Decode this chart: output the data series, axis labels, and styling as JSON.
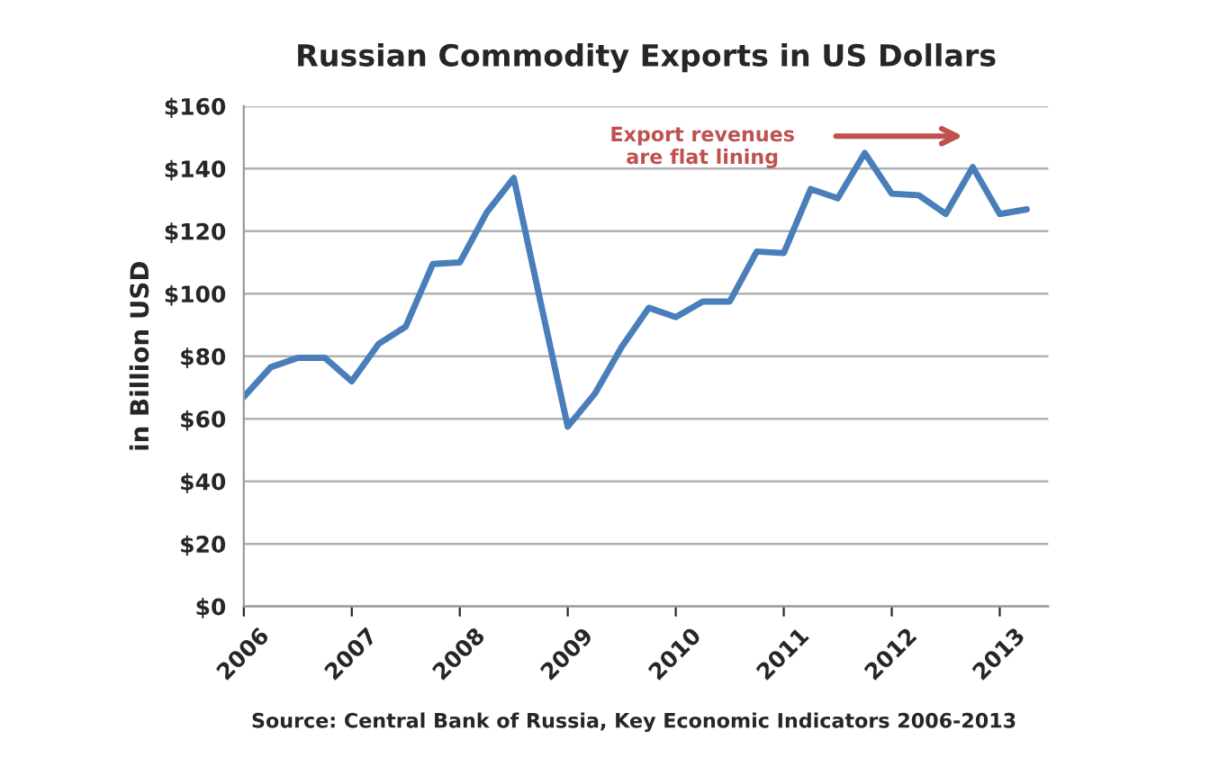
{
  "chart_data": {
    "type": "line",
    "title": "Russian Commodity Exports in US Dollars",
    "ylabel": "in Billion USD",
    "x": [
      2006,
      2006.25,
      2006.5,
      2006.75,
      2007,
      2007.25,
      2007.5,
      2007.75,
      2008,
      2008.25,
      2008.5,
      2008.75,
      2009,
      2009.25,
      2009.5,
      2009.75,
      2010,
      2010.25,
      2010.5,
      2010.75,
      2011,
      2011.25,
      2011.5,
      2011.75,
      2012,
      2012.25,
      2012.5,
      2012.75,
      2013,
      2013.25
    ],
    "series": [
      {
        "color": "#4a7ebb",
        "values": [
          67,
          76.5,
          79.5,
          79.5,
          72,
          84,
          89.5,
          109.5,
          110,
          126,
          137,
          97,
          57.5,
          68,
          83,
          95.5,
          92.5,
          97.5,
          97.5,
          113.5,
          113,
          133.5,
          130.5,
          145,
          132,
          131.5,
          125.5,
          140.5,
          125.5,
          127
        ]
      }
    ],
    "xlim": [
      2006,
      2013.45
    ],
    "xticks": [
      2006,
      2007,
      2008,
      2009,
      2010,
      2011,
      2012,
      2013
    ],
    "ylim": [
      0,
      160
    ],
    "yticks": [
      {
        "value": 0,
        "label": "$0"
      },
      {
        "value": 20,
        "label": "$20"
      },
      {
        "value": 40,
        "label": "$40"
      },
      {
        "value": 60,
        "label": "$60"
      },
      {
        "value": 80,
        "label": "$80"
      },
      {
        "value": 100,
        "label": "$100"
      },
      {
        "value": 120,
        "label": "$120"
      },
      {
        "value": 140,
        "label": "$140"
      },
      {
        "value": 160,
        "label": "$160"
      }
    ],
    "grid": "y",
    "legend": false,
    "marker": "none",
    "line_style": "solid",
    "annotations": [
      "Export revenues\nare flat lining",
      "Source: Central Bank of Russia, Key Economic Indicators 2006-2013"
    ]
  }
}
